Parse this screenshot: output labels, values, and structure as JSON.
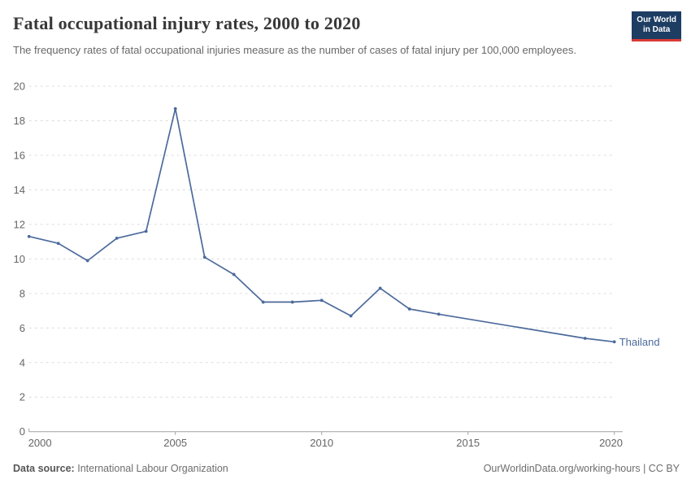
{
  "header": {
    "title": "Fatal occupational injury rates, 2000 to 2020",
    "subtitle": "The frequency rates of fatal occupational injuries measure as the number of cases of fatal injury per 100,000 employees.",
    "logo": {
      "line1": "Our World",
      "line2": "in Data",
      "bg_color": "#1d3d63",
      "stripe_color": "#d93a34"
    }
  },
  "chart_data": {
    "type": "line",
    "title": "Fatal occupational injury rates, 2000 to 2020",
    "xlabel": "",
    "ylabel": "",
    "xlim": [
      2000,
      2020
    ],
    "ylim": [
      0,
      20
    ],
    "xticks": [
      2000,
      2005,
      2010,
      2015,
      2020
    ],
    "yticks": [
      0,
      2,
      4,
      6,
      8,
      10,
      12,
      14,
      16,
      18,
      20
    ],
    "grid": "horizontal-dashed",
    "legend_position": "end-of-line-label",
    "colors": {
      "line": "#4c6a9c",
      "gridline": "#dcdcdc",
      "axis": "#a0a0a0",
      "tick_label": "#666666"
    },
    "series": [
      {
        "name": "Thailand",
        "color": "#4c6a9c",
        "x": [
          2000,
          2001,
          2002,
          2003,
          2004,
          2005,
          2006,
          2007,
          2008,
          2009,
          2010,
          2011,
          2012,
          2013,
          2014,
          2019,
          2020
        ],
        "values": [
          11.3,
          10.9,
          9.9,
          11.2,
          11.6,
          18.7,
          10.1,
          9.1,
          7.5,
          7.5,
          7.6,
          6.7,
          8.3,
          7.1,
          6.8,
          5.4,
          5.2
        ]
      }
    ]
  },
  "footer": {
    "source_label": "Data source:",
    "source_value": "International Labour Organization",
    "attribution": "OurWorldinData.org/working-hours | CC BY"
  }
}
